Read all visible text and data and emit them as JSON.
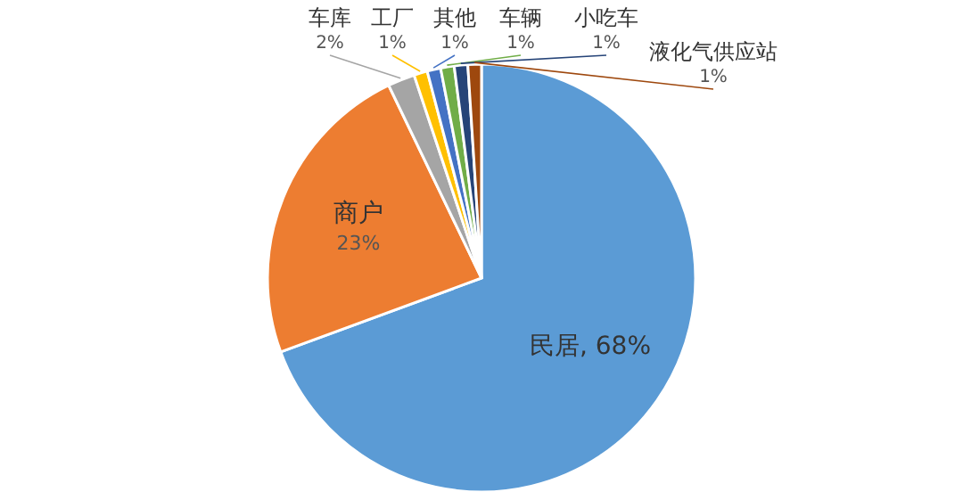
{
  "chart_data": {
    "type": "pie",
    "categories": [
      "民居",
      "商户",
      "车库",
      "工厂",
      "其他",
      "车辆",
      "小吃车",
      "液化气供应站"
    ],
    "values": [
      68,
      23,
      2,
      1,
      1,
      1,
      1,
      1
    ],
    "value_labels": [
      "68%",
      "23%",
      "2%",
      "1%",
      "1%",
      "1%",
      "1%",
      "1%"
    ],
    "colors": [
      "#5b9bd5",
      "#ed7d31",
      "#a5a5a5",
      "#ffc000",
      "#4472c4",
      "#70ad47",
      "#264478",
      "#9e480e"
    ]
  }
}
